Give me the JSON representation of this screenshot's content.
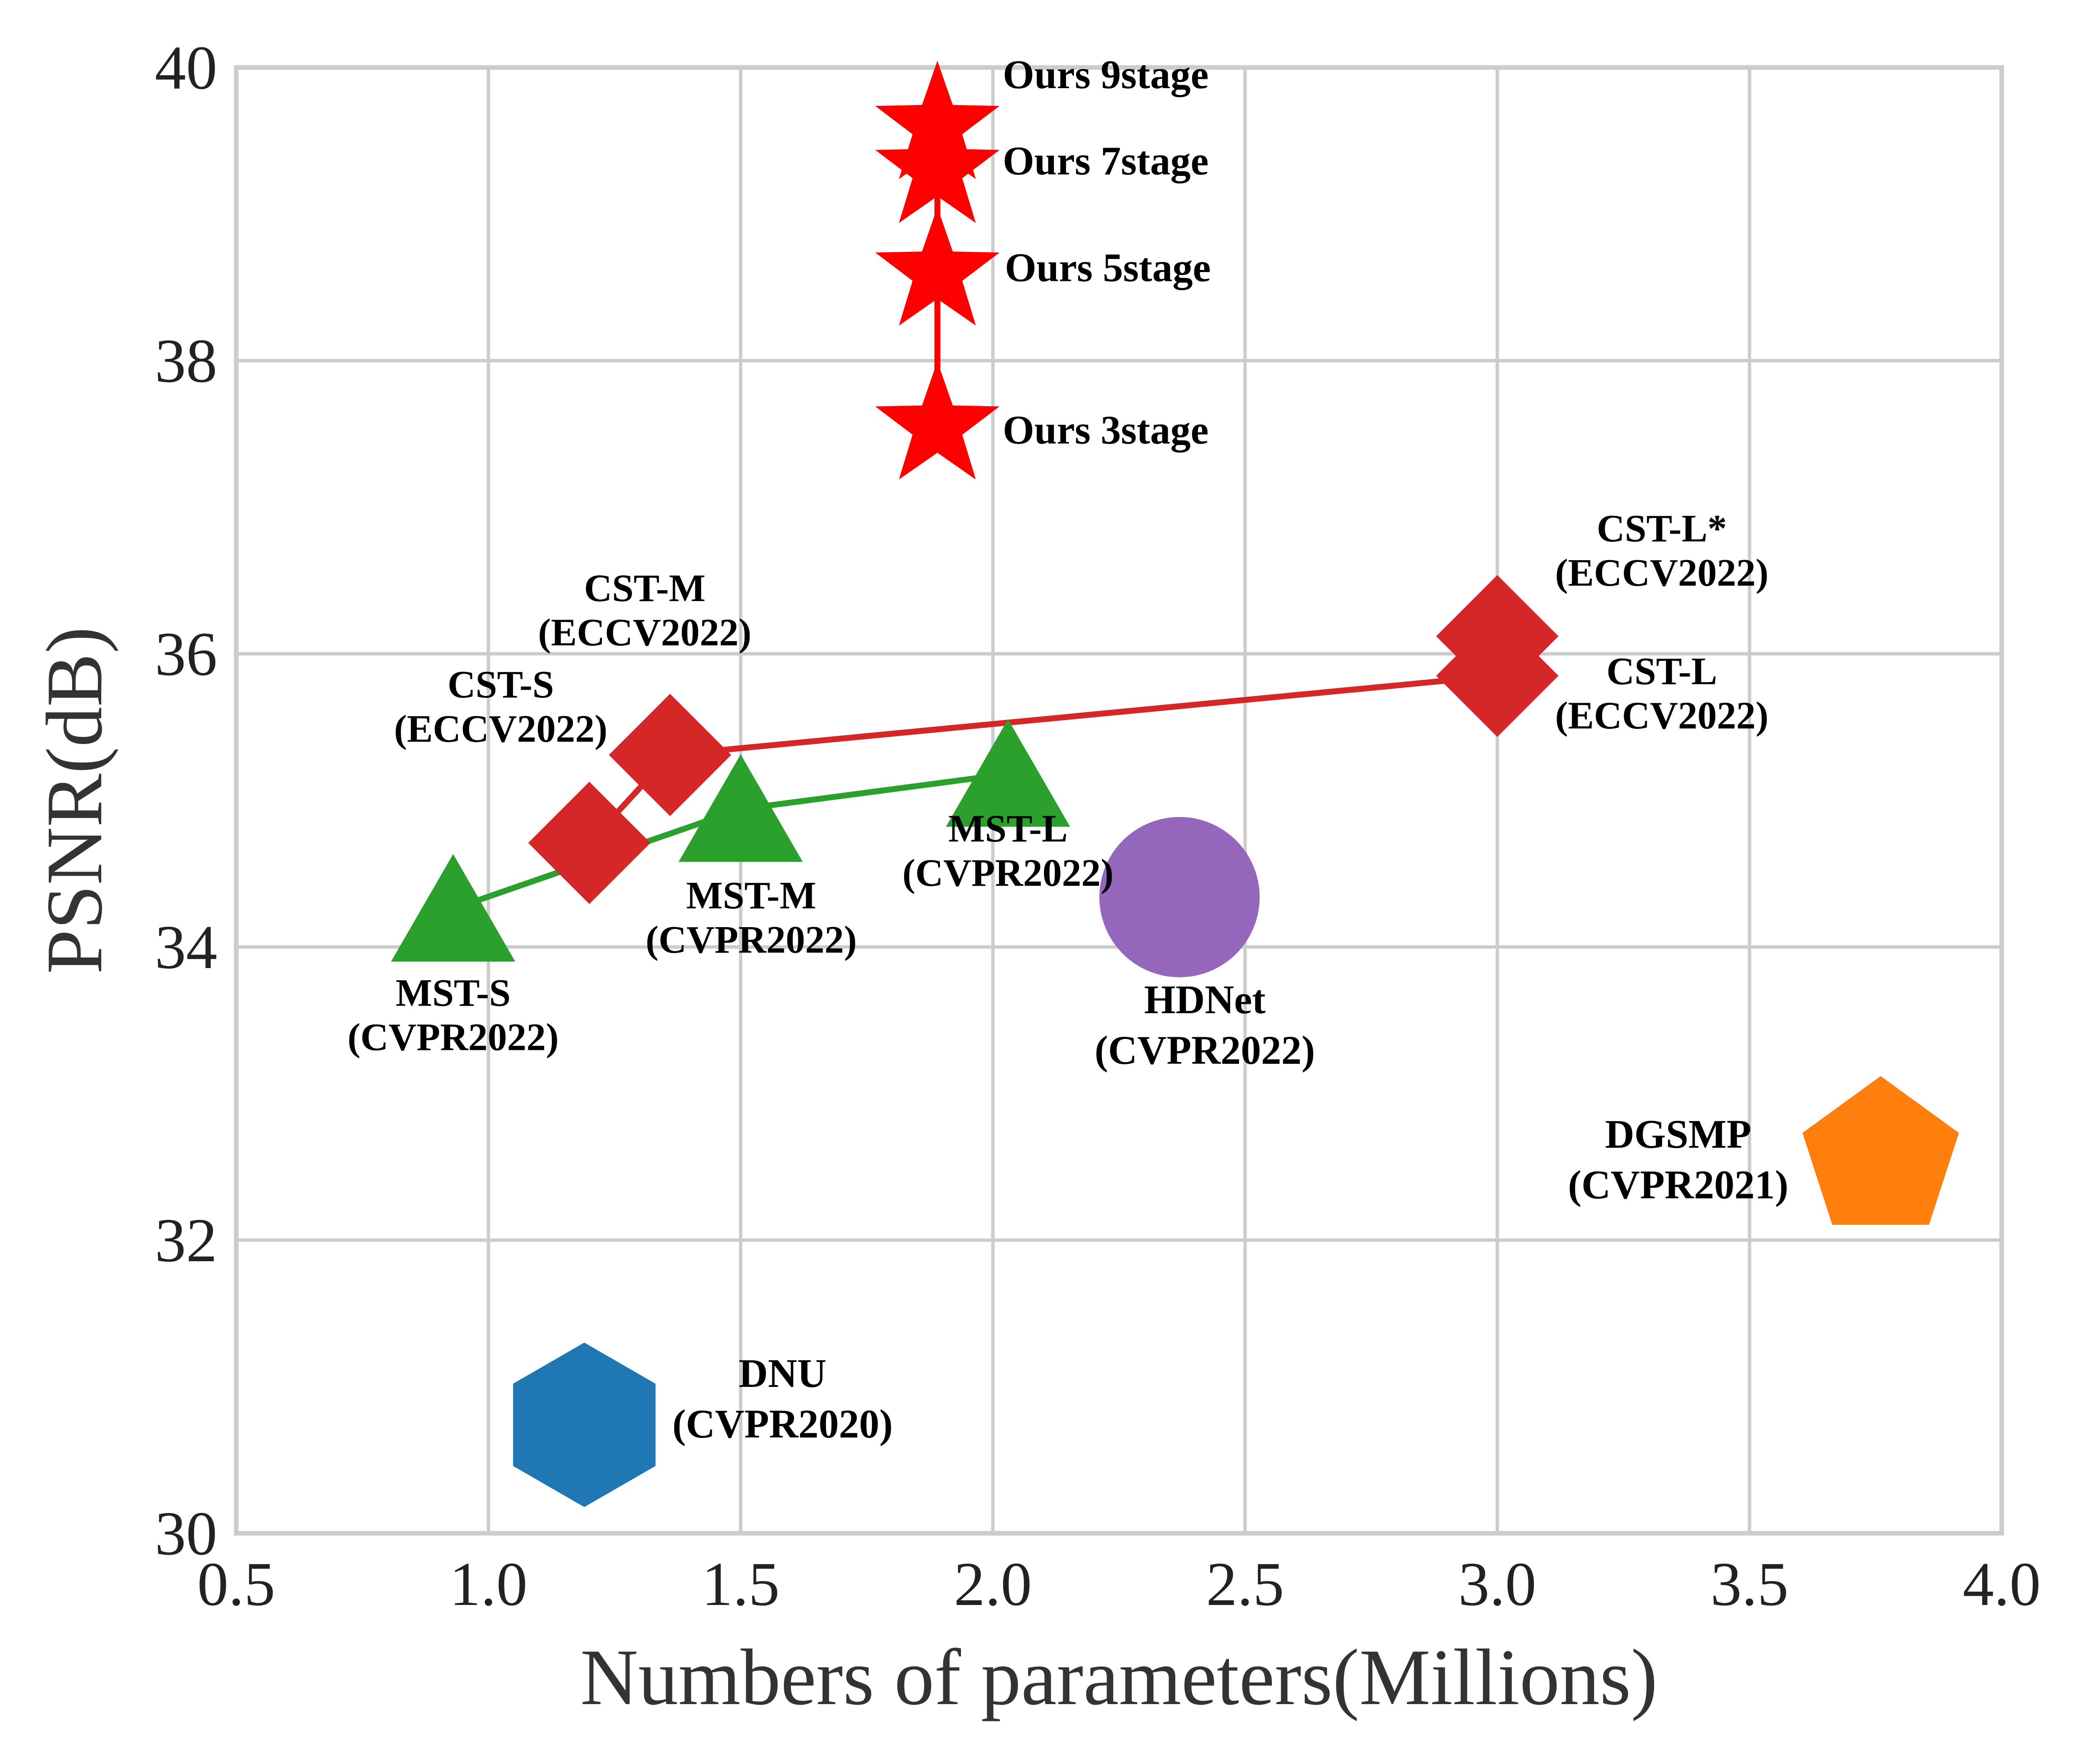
{
  "chart_data": {
    "type": "scatter",
    "title": "",
    "xlabel": "Numbers of parameters(Millions)",
    "ylabel": "PSNR(dB)",
    "xlim": [
      0.5,
      4.0
    ],
    "ylim": [
      30,
      40
    ],
    "xticks": [
      "0.5",
      "1.0",
      "1.5",
      "2.0",
      "2.5",
      "3.0",
      "3.5",
      "4.0"
    ],
    "yticks": [
      "30",
      "32",
      "34",
      "36",
      "38",
      "40"
    ],
    "grid": true,
    "legend": "none",
    "colors": {
      "ours": "#ff0000",
      "cst": "#d62728",
      "mst": "#2ca02c",
      "hdnet": "#9467bd",
      "dgsmp": "#ff7f0e",
      "dnu": "#1f77b4",
      "grid": "#cccccc"
    },
    "series": [
      {
        "marker": "star",
        "color": "#ff0000",
        "connected": true,
        "points": [
          {
            "x": 1.89,
            "y": 37.55,
            "label": [
              "Ours 3stage"
            ]
          },
          {
            "x": 1.89,
            "y": 38.6,
            "label": [
              "Ours 5stage"
            ]
          },
          {
            "x": 1.89,
            "y": 39.3,
            "label": [
              "Ours 7stage"
            ]
          },
          {
            "x": 1.89,
            "y": 39.6,
            "label": [
              "Ours 9stage"
            ]
          }
        ]
      },
      {
        "marker": "diamond",
        "color": "#d62728",
        "connected": true,
        "points": [
          {
            "x": 1.2,
            "y": 34.71,
            "label": [
              "CST-S",
              "(ECCV2022)"
            ]
          },
          {
            "x": 1.36,
            "y": 35.31,
            "label": [
              "CST-M",
              "(ECCV2022)"
            ]
          },
          {
            "x": 3.0,
            "y": 35.85,
            "label": [
              "CST-L",
              "(ECCV2022)"
            ]
          },
          {
            "x": 3.0,
            "y": 36.12,
            "label": [
              "CST-L*",
              "(ECCV2022)"
            ]
          }
        ]
      },
      {
        "marker": "triangle",
        "color": "#2ca02c",
        "connected": true,
        "points": [
          {
            "x": 0.93,
            "y": 34.26,
            "label": [
              "MST-S",
              "(CVPR2022)"
            ]
          },
          {
            "x": 1.5,
            "y": 34.94,
            "label": [
              "MST-M",
              "(CVPR2022)"
            ]
          },
          {
            "x": 2.03,
            "y": 35.18,
            "label": [
              "MST-L",
              "(CVPR2022)"
            ]
          }
        ]
      },
      {
        "marker": "circle",
        "color": "#9467bd",
        "connected": false,
        "points": [
          {
            "x": 2.37,
            "y": 34.34,
            "label": [
              "HDNet",
              "(CVPR2022)"
            ]
          }
        ]
      },
      {
        "marker": "pentagon",
        "color": "#ff7f0e",
        "connected": false,
        "points": [
          {
            "x": 3.76,
            "y": 32.63,
            "label": [
              "DGSMP",
              "(CVPR2021)"
            ]
          }
        ]
      },
      {
        "marker": "hexagon",
        "color": "#1f77b4",
        "connected": false,
        "points": [
          {
            "x": 1.19,
            "y": 30.74,
            "label": [
              "DNU",
              "(CVPR2020)"
            ]
          }
        ]
      }
    ]
  }
}
